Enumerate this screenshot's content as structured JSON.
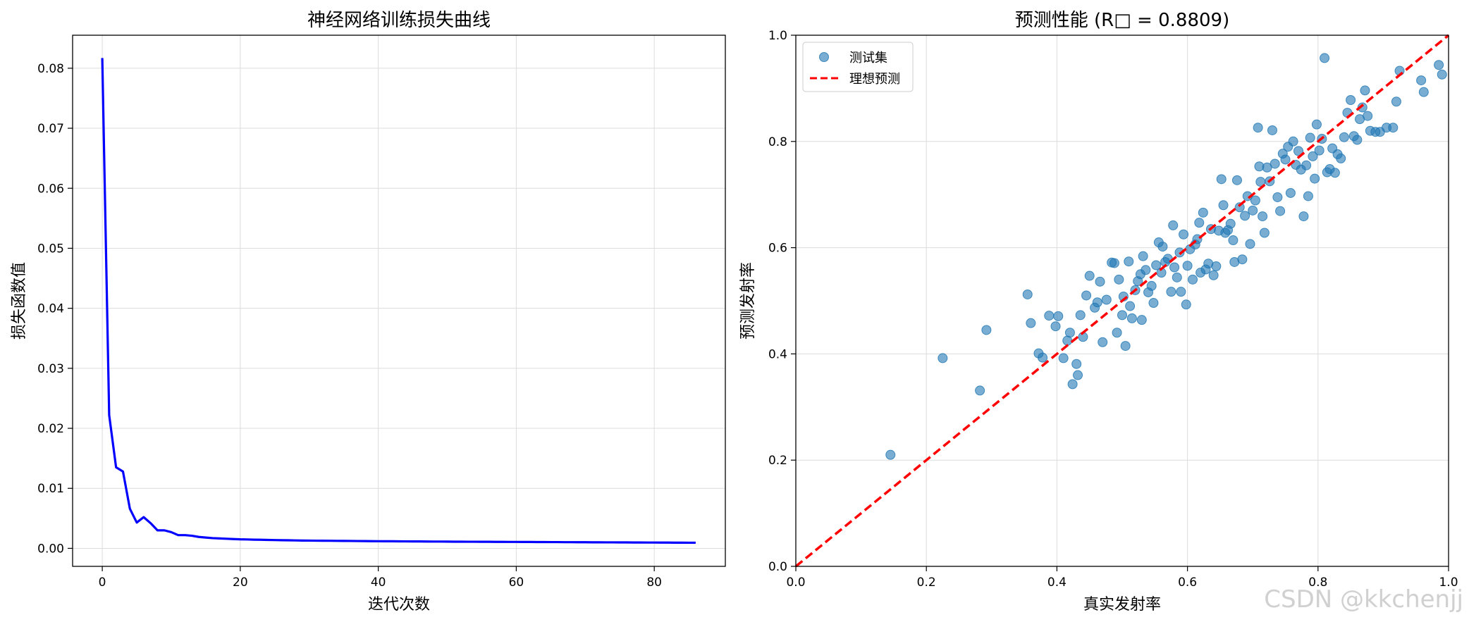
{
  "watermark": "CSDN @kkchenjj",
  "chart_data": [
    {
      "type": "line",
      "title": "神经网络训练损失曲线",
      "xlabel": "迭代次数",
      "ylabel": "损失函数值",
      "xlim": [
        -4.3,
        90.3
      ],
      "ylim": [
        -0.003,
        0.0855
      ],
      "xticks": [
        0,
        20,
        40,
        60,
        80
      ],
      "yticks": [
        0.0,
        0.01,
        0.02,
        0.03,
        0.04,
        0.05,
        0.06,
        0.07,
        0.08
      ],
      "ytick_labels": [
        "0.00",
        "0.01",
        "0.02",
        "0.03",
        "0.04",
        "0.05",
        "0.06",
        "0.07",
        "0.08"
      ],
      "grid": true,
      "series": [
        {
          "color": "#0000ff",
          "x": [
            0,
            1,
            2,
            3,
            4,
            5,
            6,
            7,
            8,
            9,
            10,
            11,
            12,
            13,
            14,
            15,
            16,
            17,
            18,
            19,
            20,
            21,
            22,
            23,
            24,
            25,
            26,
            27,
            28,
            29,
            30,
            31,
            32,
            33,
            34,
            35,
            36,
            37,
            38,
            39,
            40,
            41,
            42,
            43,
            44,
            45,
            46,
            47,
            48,
            49,
            50,
            51,
            52,
            53,
            54,
            55,
            56,
            57,
            58,
            59,
            60,
            61,
            62,
            63,
            64,
            65,
            66,
            67,
            68,
            69,
            70,
            71,
            72,
            73,
            74,
            75,
            76,
            77,
            78,
            79,
            80,
            81,
            82,
            83,
            84,
            85,
            86
          ],
          "y": [
            0.0817,
            0.0222,
            0.0135,
            0.0128,
            0.0066,
            0.0043,
            0.0052,
            0.0042,
            0.003,
            0.003,
            0.0027,
            0.0022,
            0.0022,
            0.0021,
            0.0019,
            0.0018,
            0.0017,
            0.00165,
            0.0016,
            0.00155,
            0.0015,
            0.00148,
            0.00145,
            0.00143,
            0.0014,
            0.00138,
            0.00136,
            0.00134,
            0.00132,
            0.0013,
            0.00129,
            0.00128,
            0.00127,
            0.00126,
            0.00125,
            0.00124,
            0.00123,
            0.00122,
            0.00121,
            0.0012,
            0.00119,
            0.00118,
            0.00118,
            0.00117,
            0.00116,
            0.00115,
            0.00115,
            0.00114,
            0.00113,
            0.00113,
            0.00112,
            0.00111,
            0.00111,
            0.0011,
            0.0011,
            0.00109,
            0.00109,
            0.00108,
            0.00108,
            0.00107,
            0.00107,
            0.00106,
            0.00106,
            0.00105,
            0.00105,
            0.00104,
            0.00104,
            0.00103,
            0.00103,
            0.00102,
            0.00102,
            0.00101,
            0.00101,
            0.001,
            0.001,
            0.00099,
            0.00099,
            0.00098,
            0.00098,
            0.00097,
            0.00097,
            0.00096,
            0.00096,
            0.00095,
            0.00095,
            0.00094,
            0.00094
          ]
        }
      ]
    },
    {
      "type": "scatter",
      "title": "预测性能 (R□ = 0.8809)",
      "xlabel": "真实发射率",
      "ylabel": "预测发射率",
      "xlim": [
        0.0,
        1.0
      ],
      "ylim": [
        0.0,
        1.0
      ],
      "xticks": [
        0.0,
        0.2,
        0.4,
        0.6,
        0.8,
        1.0
      ],
      "yticks": [
        0.0,
        0.2,
        0.4,
        0.6,
        0.8,
        1.0
      ],
      "xtick_labels": [
        "0.0",
        "0.2",
        "0.4",
        "0.6",
        "0.8",
        "1.0"
      ],
      "ytick_labels": [
        "0.0",
        "0.2",
        "0.4",
        "0.6",
        "0.8",
        "1.0"
      ],
      "grid": true,
      "legend_position": "top-left",
      "series": [
        {
          "name": "测试集",
          "color": "#1f77b4",
          "points": [
            [
              0.145,
              0.21
            ],
            [
              0.225,
              0.392
            ],
            [
              0.282,
              0.331
            ],
            [
              0.292,
              0.445
            ],
            [
              0.355,
              0.512
            ],
            [
              0.36,
              0.458
            ],
            [
              0.372,
              0.401
            ],
            [
              0.378,
              0.393
            ],
            [
              0.388,
              0.472
            ],
            [
              0.398,
              0.452
            ],
            [
              0.402,
              0.471
            ],
            [
              0.41,
              0.392
            ],
            [
              0.416,
              0.425
            ],
            [
              0.42,
              0.44
            ],
            [
              0.424,
              0.343
            ],
            [
              0.43,
              0.381
            ],
            [
              0.432,
              0.36
            ],
            [
              0.436,
              0.473
            ],
            [
              0.44,
              0.432
            ],
            [
              0.445,
              0.51
            ],
            [
              0.45,
              0.547
            ],
            [
              0.458,
              0.487
            ],
            [
              0.462,
              0.497
            ],
            [
              0.466,
              0.536
            ],
            [
              0.47,
              0.422
            ],
            [
              0.476,
              0.502
            ],
            [
              0.484,
              0.572
            ],
            [
              0.488,
              0.571
            ],
            [
              0.492,
              0.44
            ],
            [
              0.495,
              0.54
            ],
            [
              0.5,
              0.473
            ],
            [
              0.502,
              0.508
            ],
            [
              0.505,
              0.415
            ],
            [
              0.51,
              0.574
            ],
            [
              0.512,
              0.49
            ],
            [
              0.515,
              0.467
            ],
            [
              0.52,
              0.52
            ],
            [
              0.524,
              0.537
            ],
            [
              0.528,
              0.55
            ],
            [
              0.53,
              0.464
            ],
            [
              0.532,
              0.584
            ],
            [
              0.536,
              0.558
            ],
            [
              0.54,
              0.516
            ],
            [
              0.545,
              0.528
            ],
            [
              0.548,
              0.496
            ],
            [
              0.552,
              0.567
            ],
            [
              0.556,
              0.61
            ],
            [
              0.56,
              0.553
            ],
            [
              0.562,
              0.602
            ],
            [
              0.566,
              0.573
            ],
            [
              0.57,
              0.579
            ],
            [
              0.575,
              0.517
            ],
            [
              0.578,
              0.642
            ],
            [
              0.58,
              0.563
            ],
            [
              0.584,
              0.544
            ],
            [
              0.588,
              0.591
            ],
            [
              0.59,
              0.517
            ],
            [
              0.594,
              0.625
            ],
            [
              0.598,
              0.493
            ],
            [
              0.6,
              0.566
            ],
            [
              0.604,
              0.597
            ],
            [
              0.608,
              0.54
            ],
            [
              0.612,
              0.606
            ],
            [
              0.615,
              0.616
            ],
            [
              0.618,
              0.647
            ],
            [
              0.62,
              0.553
            ],
            [
              0.624,
              0.666
            ],
            [
              0.628,
              0.559
            ],
            [
              0.632,
              0.57
            ],
            [
              0.636,
              0.635
            ],
            [
              0.64,
              0.548
            ],
            [
              0.644,
              0.565
            ],
            [
              0.648,
              0.632
            ],
            [
              0.652,
              0.729
            ],
            [
              0.655,
              0.68
            ],
            [
              0.658,
              0.628
            ],
            [
              0.662,
              0.633
            ],
            [
              0.666,
              0.645
            ],
            [
              0.67,
              0.614
            ],
            [
              0.672,
              0.573
            ],
            [
              0.676,
              0.727
            ],
            [
              0.68,
              0.676
            ],
            [
              0.684,
              0.578
            ],
            [
              0.688,
              0.66
            ],
            [
              0.692,
              0.697
            ],
            [
              0.696,
              0.607
            ],
            [
              0.7,
              0.67
            ],
            [
              0.704,
              0.689
            ],
            [
              0.708,
              0.826
            ],
            [
              0.71,
              0.753
            ],
            [
              0.712,
              0.724
            ],
            [
              0.715,
              0.659
            ],
            [
              0.718,
              0.628
            ],
            [
              0.722,
              0.751
            ],
            [
              0.726,
              0.725
            ],
            [
              0.73,
              0.821
            ],
            [
              0.734,
              0.758
            ],
            [
              0.738,
              0.695
            ],
            [
              0.742,
              0.669
            ],
            [
              0.746,
              0.777
            ],
            [
              0.75,
              0.766
            ],
            [
              0.754,
              0.79
            ],
            [
              0.758,
              0.703
            ],
            [
              0.762,
              0.8
            ],
            [
              0.766,
              0.756
            ],
            [
              0.77,
              0.782
            ],
            [
              0.774,
              0.747
            ],
            [
              0.778,
              0.659
            ],
            [
              0.782,
              0.755
            ],
            [
              0.785,
              0.697
            ],
            [
              0.788,
              0.807
            ],
            [
              0.792,
              0.772
            ],
            [
              0.795,
              0.73
            ],
            [
              0.798,
              0.832
            ],
            [
              0.802,
              0.783
            ],
            [
              0.806,
              0.805
            ],
            [
              0.81,
              0.957
            ],
            [
              0.814,
              0.742
            ],
            [
              0.818,
              0.748
            ],
            [
              0.822,
              0.787
            ],
            [
              0.826,
              0.741
            ],
            [
              0.83,
              0.776
            ],
            [
              0.835,
              0.768
            ],
            [
              0.84,
              0.808
            ],
            [
              0.845,
              0.854
            ],
            [
              0.85,
              0.878
            ],
            [
              0.855,
              0.81
            ],
            [
              0.86,
              0.803
            ],
            [
              0.864,
              0.842
            ],
            [
              0.868,
              0.864
            ],
            [
              0.872,
              0.896
            ],
            [
              0.876,
              0.848
            ],
            [
              0.88,
              0.82
            ],
            [
              0.888,
              0.818
            ],
            [
              0.895,
              0.818
            ],
            [
              0.905,
              0.826
            ],
            [
              0.915,
              0.826
            ],
            [
              0.92,
              0.875
            ],
            [
              0.925,
              0.933
            ],
            [
              0.958,
              0.915
            ],
            [
              0.962,
              0.893
            ],
            [
              0.985,
              0.944
            ],
            [
              0.99,
              0.926
            ]
          ]
        },
        {
          "name": "理想预测",
          "color": "#ff0000",
          "style": "dashed",
          "x": [
            0.0,
            1.0
          ],
          "y": [
            0.0,
            1.0
          ]
        }
      ]
    }
  ]
}
